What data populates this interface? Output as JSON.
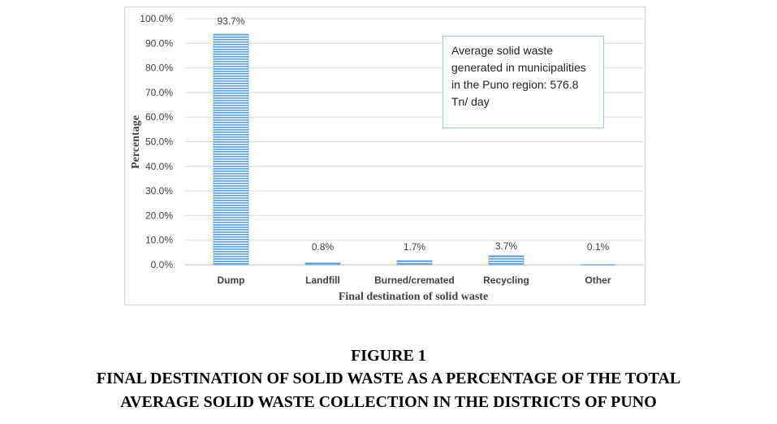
{
  "chart_data": {
    "type": "bar",
    "categories": [
      "Dump",
      "Landfill",
      "Burned/cremated",
      "Recycling",
      "Other"
    ],
    "values": [
      93.7,
      0.8,
      1.7,
      3.7,
      0.1
    ],
    "data_labels": [
      "93.7%",
      "0.8%",
      "1.7%",
      "3.7%",
      "0.1%"
    ],
    "xlabel": "Final destination of solid waste",
    "ylabel": "Percentage",
    "ylim": [
      0,
      100
    ],
    "ytick_step": 10,
    "ytick_labels": [
      "0.0%",
      "10.0%",
      "20.0%",
      "30.0%",
      "40.0%",
      "50.0%",
      "60.0%",
      "70.0%",
      "80.0%",
      "90.0%",
      "100.0%"
    ],
    "grid": true,
    "bar_color": "#5b9bd5",
    "annotation": "Average solid waste generated in municipalities in the Puno region: 576.8 Tn/ day"
  },
  "caption": {
    "figure_label": "FIGURE 1",
    "title_line1": "FINAL DESTINATION OF SOLID WASTE AS A PERCENTAGE OF THE TOTAL",
    "title_line2": "AVERAGE SOLID WASTE COLLECTION IN THE DISTRICTS OF PUNO"
  }
}
